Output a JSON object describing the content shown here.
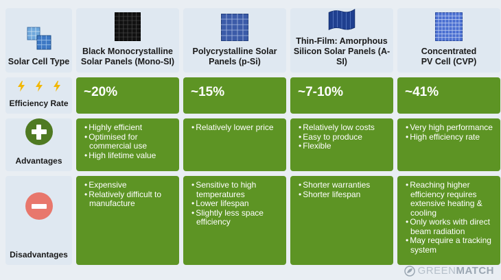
{
  "row_labels": {
    "type": "Solar Cell Type",
    "efficiency": "Efficiency Rate",
    "advantages": "Advantages",
    "disadvantages": "Disadvantages"
  },
  "columns": [
    {
      "name": "Black Monocrystalline\nSolar Panels (Mono-SI)",
      "efficiency": "~20%",
      "advantages": [
        "Highly efficient",
        "Optimised for commercial use",
        "High lifetime value"
      ],
      "disadvantages": [
        "Expensive",
        "Relatively difficult to manufacture"
      ]
    },
    {
      "name": "Polycrystalline Solar\nPanels (p-Si)",
      "efficiency": "~15%",
      "advantages": [
        "Relatively lower price"
      ],
      "disadvantages": [
        "Sensitive to high temperatures",
        "Lower lifespan",
        "Slightly less space efficiency"
      ]
    },
    {
      "name": "Thin-Film: Amorphous\nSilicon Solar Panels (A-SI)",
      "efficiency": "~7-10%",
      "advantages": [
        "Relatively low costs",
        "Easy to produce",
        "Flexible"
      ],
      "disadvantages": [
        "Shorter warranties",
        "Shorter lifespan"
      ]
    },
    {
      "name": "Concentrated\nPV Cell (CVP)",
      "efficiency": "~41%",
      "advantages": [
        "Very high performance",
        "High efficiency rate"
      ],
      "disadvantages": [
        "Reaching higher efficiency requires extensive heating & cooling",
        "Only works with direct beam radiation",
        "May require a tracking system"
      ]
    }
  ],
  "brand": {
    "part1": "GREEN",
    "part2": "MATCH"
  },
  "colors": {
    "green": "#5d9424",
    "cell_bg": "#dfe8f1",
    "page_bg": "#e9eef3",
    "minus": "#e8776c",
    "plus": "#4f7a22",
    "bolt": "#f2b705"
  }
}
